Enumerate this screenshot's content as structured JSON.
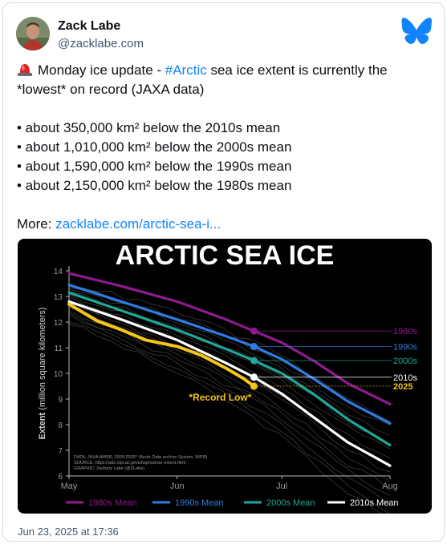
{
  "author": {
    "name": "Zack Labe",
    "handle": "@zacklabe.com",
    "avatar_icon": "avatar-photo-icon",
    "platform_icon": "bluesky-butterfly-icon",
    "platform_color": "#1083fe"
  },
  "post": {
    "line1_prefix": "Monday ice update - ",
    "hashtag": "#Arctic",
    "line1_suffix": " sea ice extent is currently the",
    "line2": "*lowest* on record (JAXA data)",
    "bullets": [
      "• about 350,000 km² below the 2010s mean",
      "• about 1,010,000 km² below the 2000s mean",
      "• about 1,590,000 km² below the 1990s mean",
      "• about 2,150,000 km² below the 1980s mean"
    ],
    "more_label": "More: ",
    "more_link": "zacklabe.com/arctic-sea-i...",
    "emoji_icon": "siren-emoji-icon"
  },
  "timestamp": "Jun 23, 2025 at 17:36",
  "chart_data": {
    "type": "line",
    "title": "ARCTIC SEA ICE",
    "ylabel_bold": "Extent",
    "ylabel_rest": " (million square kilometers)",
    "xlabel": "",
    "ylim": [
      6,
      14
    ],
    "yticks": [
      6,
      7,
      8,
      9,
      10,
      11,
      12,
      13,
      14
    ],
    "xticks": [
      "May",
      "Jun",
      "Jul",
      "Aug"
    ],
    "xtick_days": [
      0,
      31,
      61,
      92
    ],
    "current_day": 53,
    "grid": false,
    "background": "#000000",
    "series": [
      {
        "name": "1980s",
        "color": "#8f1a8f",
        "x": [
          0,
          15,
          31,
          45,
          53,
          61,
          70,
          80,
          92
        ],
        "y": [
          13.9,
          13.4,
          12.8,
          12.1,
          11.65,
          11.2,
          10.5,
          9.6,
          8.8
        ],
        "end_label": "1980s",
        "legend": "1980s Mean"
      },
      {
        "name": "1990s",
        "color": "#2e7de6",
        "x": [
          0,
          15,
          31,
          45,
          53,
          61,
          70,
          80,
          92
        ],
        "y": [
          13.45,
          12.8,
          12.1,
          11.45,
          11.05,
          10.55,
          9.8,
          8.9,
          8.05
        ],
        "end_label": "1990s",
        "legend": "1990s Mean"
      },
      {
        "name": "2000s",
        "color": "#1fa79a",
        "x": [
          0,
          15,
          31,
          45,
          53,
          61,
          70,
          80,
          92
        ],
        "y": [
          13.15,
          12.45,
          11.7,
          10.95,
          10.5,
          10.0,
          9.2,
          8.2,
          7.2
        ],
        "end_label": "2000s",
        "legend": "2000s Mean"
      },
      {
        "name": "2010s",
        "color": "#ffffff",
        "x": [
          0,
          15,
          31,
          45,
          53,
          61,
          70,
          80,
          92
        ],
        "y": [
          12.8,
          12.1,
          11.3,
          10.4,
          9.85,
          9.2,
          8.3,
          7.3,
          6.4
        ],
        "end_label": "2010s",
        "legend": "2010s Mean"
      },
      {
        "name": "2025",
        "color": "#f5c518",
        "x": [
          0,
          8,
          15,
          22,
          31,
          38,
          45,
          50,
          53
        ],
        "y": [
          12.7,
          12.05,
          11.7,
          11.3,
          11.05,
          10.7,
          10.2,
          9.8,
          9.5
        ],
        "end_label": "2025",
        "legend": ""
      }
    ],
    "annotation": "*Record Low*",
    "annotation_color": "#f5c518",
    "credits": [
      "DATA: JAXA AMSR, 2000-2025* (Arctic Data archive System, NIPR)",
      "SOURCE: https://ads.nipr.ac.jp/vishop/vishop-extent.html",
      "GRAPHIC: Zachary Labe (@ZLabe)"
    ]
  }
}
